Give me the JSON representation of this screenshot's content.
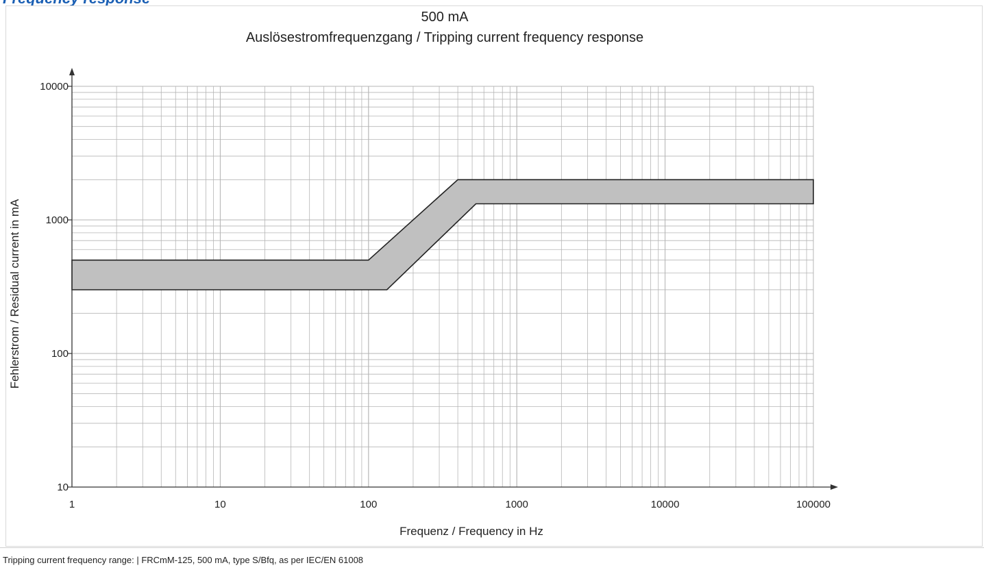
{
  "page": {
    "cut_heading": "Frequency response",
    "caption": "Tripping current frequency range: | FRCmM-125, 500 mA, type S/Bfq, as per IEC/EN 61008"
  },
  "colors": {
    "band_fill": "#c0c0c0",
    "band_stroke": "#222222",
    "grid": "#b5b5b5",
    "axis": "#333333",
    "text": "#222222",
    "heading": "#1a5fb4"
  },
  "chart_data": {
    "type": "area",
    "title": "500 mA",
    "subtitle": "Auslösestromfrequenzgang / Tripping current frequency response",
    "xlabel": "Frequenz /  Frequency in Hz",
    "ylabel": "Fehlerstrom /  Residual current in mA",
    "xscale": "log",
    "yscale": "log",
    "xlim": [
      1,
      100000
    ],
    "ylim": [
      10,
      10000
    ],
    "x_ticks": [
      "1",
      "10",
      "100",
      "1000",
      "10000",
      "100000"
    ],
    "y_ticks": [
      "10",
      "100",
      "1000",
      "10000"
    ],
    "grid": true,
    "series": [
      {
        "upper_bound": {
          "x": [
            1,
            100,
            400,
            100000
          ],
          "y": [
            500,
            500,
            2000,
            2000
          ]
        },
        "lower_bound": {
          "x": [
            1,
            133,
            530,
            100000
          ],
          "y": [
            300,
            300,
            1320,
            1320
          ]
        }
      }
    ]
  }
}
